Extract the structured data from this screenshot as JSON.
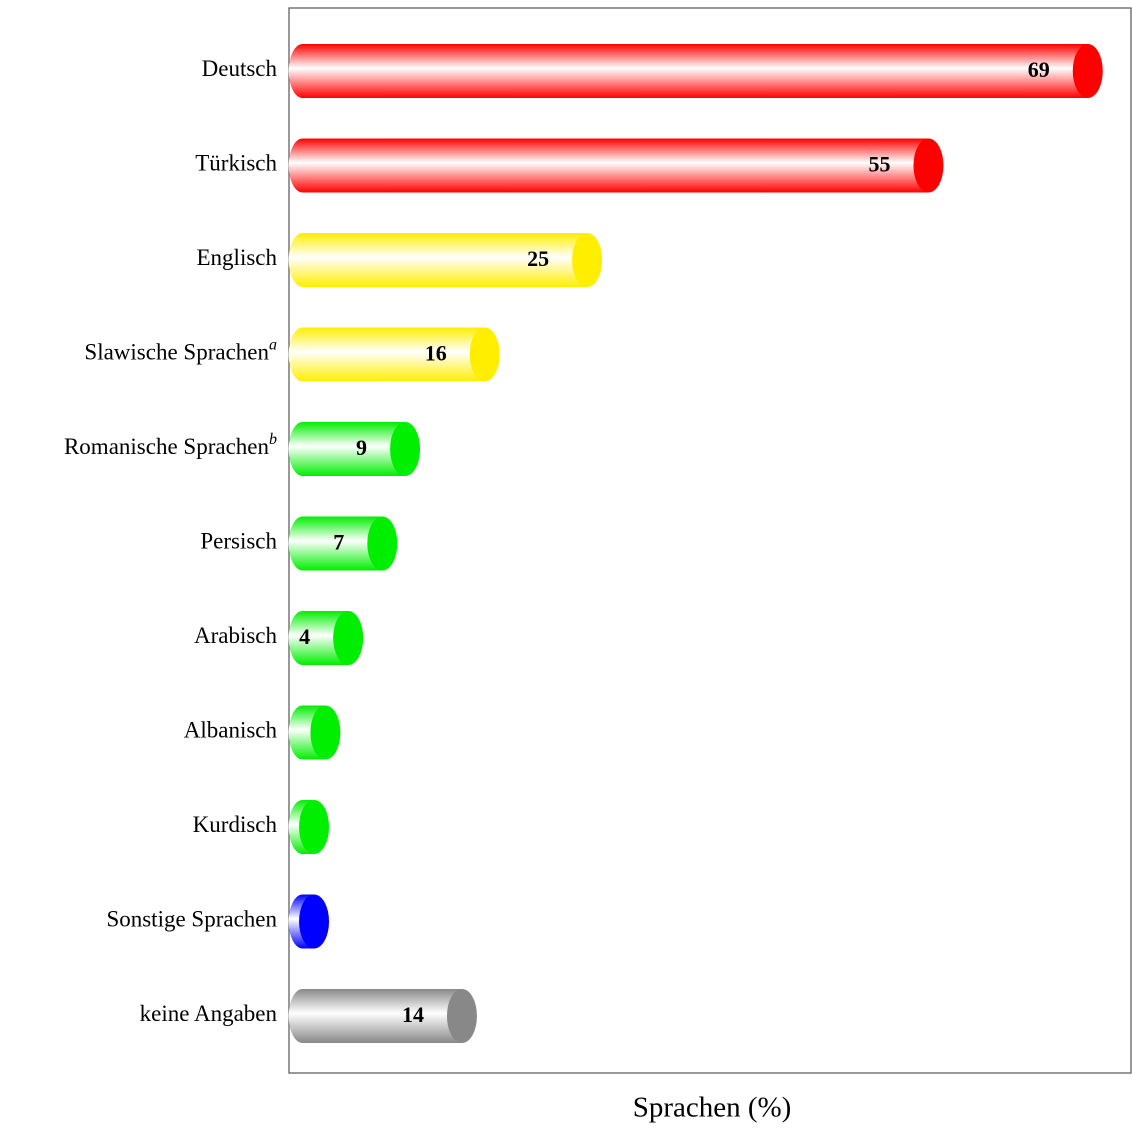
{
  "chart_data": {
    "type": "bar",
    "orientation": "horizontal",
    "x_label": "Sprachen (%)",
    "categories": [
      "Deutsch",
      "Türkisch",
      "Englisch",
      "Slawische Sprachen",
      "Romanische Sprachen",
      "Persisch",
      "Arabisch",
      "Albanisch",
      "Kurdisch",
      "Sonstige Sprachen",
      "keine Angaben"
    ],
    "category_notes": [
      null,
      null,
      null,
      "a",
      "b",
      null,
      null,
      null,
      null,
      null,
      null
    ],
    "values": [
      69,
      55,
      25,
      16,
      9,
      7,
      4,
      2,
      1,
      1,
      14
    ],
    "value_labels": [
      "69",
      "55",
      "25",
      "16",
      "9",
      "7",
      "4",
      null,
      null,
      null,
      "14"
    ],
    "colors": [
      "#ff0000",
      "#ff0000",
      "#ffee00",
      "#ffee00",
      "#00ee00",
      "#00ee00",
      "#00ee00",
      "#00ee00",
      "#00ee00",
      "#0000ff",
      "#888888"
    ],
    "xlim": [
      -1.2,
      72.8
    ],
    "grid": false
  }
}
